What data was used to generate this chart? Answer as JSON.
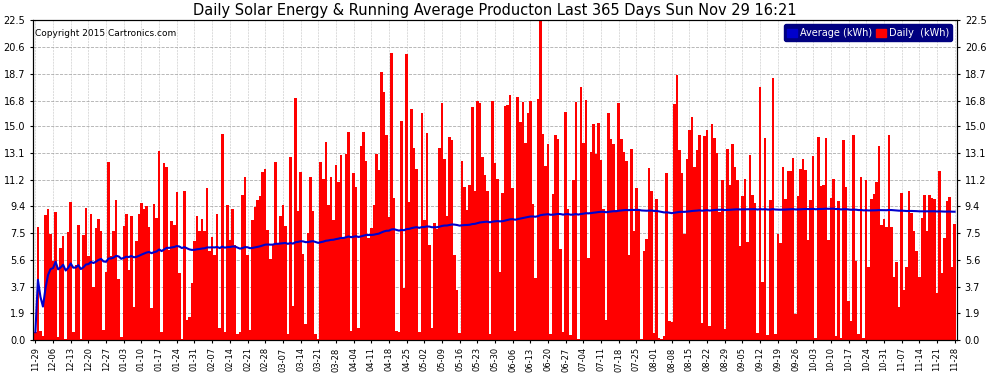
{
  "title": "Daily Solar Energy & Running Average Producton Last 365 Days Sun Nov 29 16:21",
  "copyright": "Copyright 2015 Cartronics.com",
  "bar_color": "#ff0000",
  "avg_line_color": "#0000cd",
  "background_color": "#ffffff",
  "grid_color": "#999999",
  "ylim": [
    0,
    22.5
  ],
  "yticks": [
    0.0,
    1.9,
    3.7,
    5.6,
    7.5,
    9.4,
    11.2,
    13.1,
    15.0,
    16.8,
    18.7,
    20.6,
    22.5
  ],
  "legend_avg_color": "#0000cd",
  "legend_daily_color": "#ff0000",
  "legend_text_color": "#ffffff",
  "legend_bg_color": "#000080",
  "seed": 42,
  "n_days": 365,
  "start_month": 11,
  "start_day": 29
}
